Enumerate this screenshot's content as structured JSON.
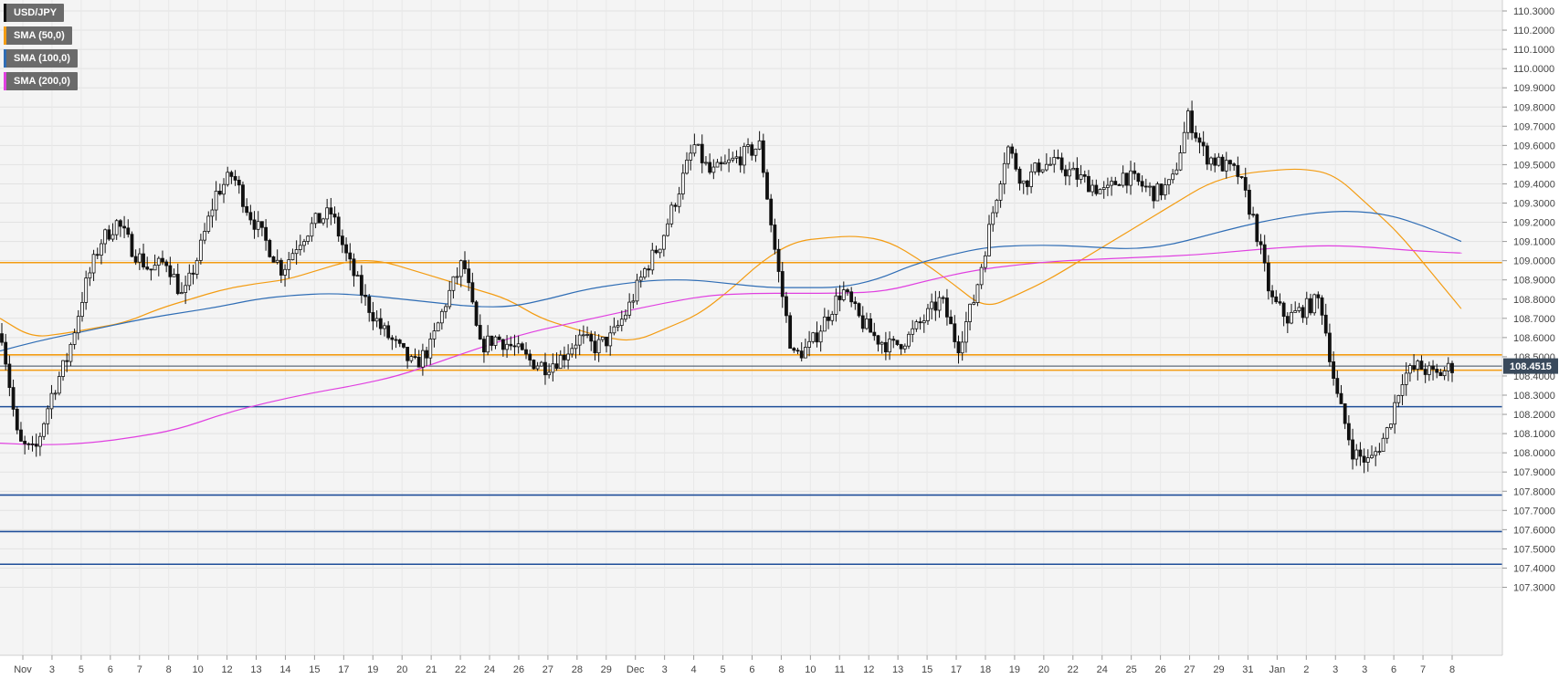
{
  "legend": [
    {
      "label": "USD/JPY",
      "color": "#111111"
    },
    {
      "label": "SMA (50,0)",
      "color": "#f39c12"
    },
    {
      "label": "SMA (100,0)",
      "color": "#2f6db5"
    },
    {
      "label": "SMA (200,0)",
      "color": "#e040e0"
    }
  ],
  "price_tag": "108.4515",
  "chart_data": {
    "type": "candlestick",
    "symbol": "USD/JPY",
    "ylim": [
      107.22,
      110.33
    ],
    "y_ticks": [
      "110.3000",
      "110.2000",
      "110.1000",
      "110.0000",
      "109.9000",
      "109.8000",
      "109.7000",
      "109.6000",
      "109.5000",
      "109.4000",
      "109.3000",
      "109.2000",
      "109.1000",
      "109.0000",
      "108.9000",
      "108.8000",
      "108.7000",
      "108.6000",
      "108.5000",
      "108.4000",
      "108.3000",
      "108.2000",
      "108.1000",
      "108.0000",
      "107.9000",
      "107.8000",
      "107.7000",
      "107.6000",
      "107.5000",
      "107.4000",
      "107.3000"
    ],
    "x_ticks": [
      "Nov",
      "3",
      "5",
      "6",
      "7",
      "8",
      "10",
      "12",
      "13",
      "14",
      "15",
      "17",
      "19",
      "20",
      "21",
      "22",
      "24",
      "26",
      "27",
      "28",
      "29",
      "Dec",
      "3",
      "4",
      "5",
      "6",
      "8",
      "10",
      "11",
      "12",
      "13",
      "15",
      "17",
      "18",
      "19",
      "20",
      "22",
      "24",
      "25",
      "26",
      "27",
      "29",
      "31",
      "Jan",
      "2",
      "3",
      "3",
      "6",
      "7",
      "8"
    ],
    "last_price": 108.4515,
    "horizontal_levels": [
      {
        "value": 108.99,
        "color": "#f39c12"
      },
      {
        "value": 108.51,
        "color": "#f39c12"
      },
      {
        "value": 108.43,
        "color": "#f39c12"
      },
      {
        "value": 108.24,
        "color": "#1f4e99"
      },
      {
        "value": 107.78,
        "color": "#1f4e99"
      },
      {
        "value": 107.59,
        "color": "#1f4e99"
      },
      {
        "value": 107.42,
        "color": "#1f4e99"
      }
    ],
    "close_path": [
      108.62,
      108.05,
      108.0,
      108.3,
      108.5,
      108.85,
      109.1,
      109.2,
      109.05,
      108.95,
      109.0,
      108.8,
      109.05,
      109.35,
      109.45,
      109.25,
      109.1,
      108.95,
      109.1,
      109.2,
      109.25,
      109.0,
      108.8,
      108.65,
      108.55,
      108.45,
      108.55,
      108.8,
      109.0,
      108.55,
      108.6,
      108.55,
      108.48,
      108.45,
      108.5,
      108.6,
      108.55,
      108.6,
      108.75,
      108.95,
      109.1,
      109.35,
      109.6,
      109.45,
      109.5,
      109.55,
      109.6,
      109.0,
      108.5,
      108.55,
      108.7,
      108.85,
      108.7,
      108.6,
      108.55,
      108.6,
      108.7,
      108.8,
      108.55,
      108.8,
      109.2,
      109.6,
      109.4,
      109.5,
      109.5,
      109.45,
      109.4,
      109.35,
      109.45,
      109.4,
      109.35,
      109.4,
      109.75,
      109.55,
      109.5,
      109.45,
      109.2,
      108.8,
      108.7,
      108.75,
      108.8,
      108.3,
      108.0,
      107.95,
      108.1,
      108.4,
      108.45,
      108.4,
      108.45
    ],
    "series": [
      {
        "name": "SMA (50,0)",
        "color": "#f39c12",
        "values": [
          108.7,
          108.6,
          108.62,
          108.65,
          108.68,
          108.75,
          108.8,
          108.85,
          108.88,
          108.9,
          108.95,
          109.0,
          109.0,
          108.95,
          108.9,
          108.85,
          108.8,
          108.7,
          108.65,
          108.6,
          108.58,
          108.65,
          108.72,
          108.85,
          109.0,
          109.1,
          109.12,
          109.13,
          109.1,
          109.0,
          108.88,
          108.75,
          108.82,
          108.9,
          109.0,
          109.1,
          109.2,
          109.3,
          109.4,
          109.45,
          109.47,
          109.48,
          109.45,
          109.3,
          109.15,
          108.95,
          108.75
        ]
      },
      {
        "name": "SMA (100,0)",
        "color": "#2f6db5",
        "values": [
          108.53,
          108.58,
          108.62,
          108.66,
          108.7,
          108.73,
          108.76,
          108.8,
          108.82,
          108.83,
          108.82,
          108.8,
          108.78,
          108.76,
          108.76,
          108.8,
          108.85,
          108.88,
          108.9,
          108.9,
          108.88,
          108.86,
          108.86,
          108.86,
          108.9,
          108.98,
          109.03,
          109.07,
          109.08,
          109.08,
          109.07,
          109.06,
          109.08,
          109.13,
          109.18,
          109.22,
          109.25,
          109.26,
          109.24,
          109.18,
          109.1
        ]
      },
      {
        "name": "SMA (200,0)",
        "color": "#e040e0",
        "values": [
          108.05,
          108.04,
          108.05,
          108.08,
          108.12,
          108.2,
          108.26,
          108.31,
          108.35,
          108.4,
          108.48,
          108.56,
          108.63,
          108.68,
          108.73,
          108.78,
          108.82,
          108.83,
          108.83,
          108.83,
          108.84,
          108.9,
          108.95,
          108.98,
          109.0,
          109.01,
          109.02,
          109.03,
          109.05,
          109.07,
          109.08,
          109.07,
          109.05,
          109.04
        ]
      }
    ]
  }
}
